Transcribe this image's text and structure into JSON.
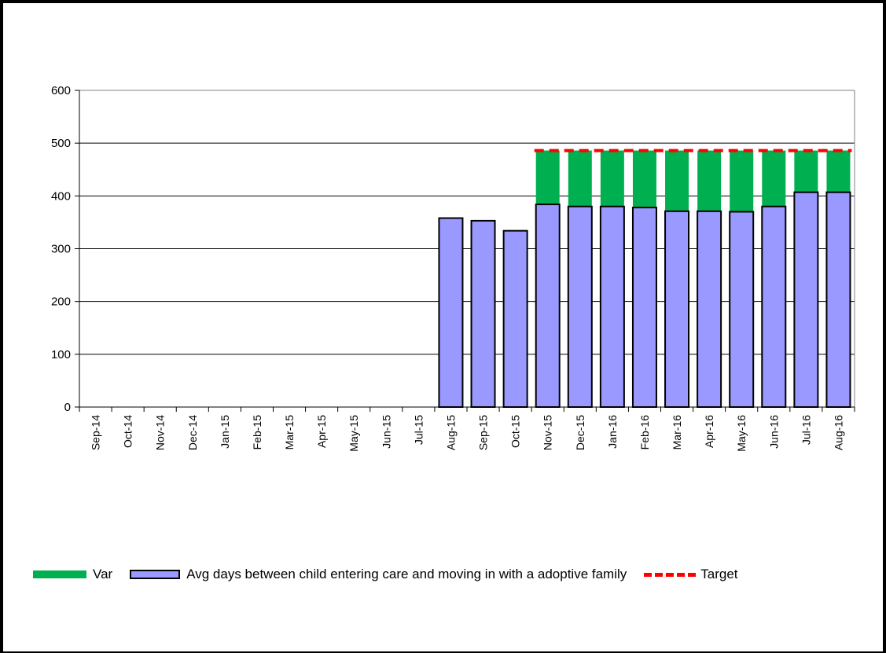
{
  "chart_data": {
    "type": "bar",
    "categories": [
      "Sep-14",
      "Oct-14",
      "Nov-14",
      "Dec-14",
      "Jan-15",
      "Feb-15",
      "Mar-15",
      "Apr-15",
      "May-15",
      "Jun-15",
      "Jul-15",
      "Aug-15",
      "Sep-15",
      "Oct-15",
      "Nov-15",
      "Dec-15",
      "Jan-16",
      "Feb-16",
      "Mar-16",
      "Apr-16",
      "May-16",
      "Jun-16",
      "Jul-16",
      "Aug-16"
    ],
    "series": [
      {
        "name": "Avg days between child entering care and moving in with a adoptive family",
        "kind": "bar",
        "values": [
          null,
          null,
          null,
          null,
          null,
          null,
          null,
          null,
          null,
          null,
          null,
          358,
          353,
          334,
          384,
          380,
          380,
          378,
          371,
          371,
          370,
          380,
          407,
          407
        ]
      },
      {
        "name": "Var",
        "kind": "stacked-bar",
        "values": [
          null,
          null,
          null,
          null,
          null,
          null,
          null,
          null,
          null,
          null,
          null,
          null,
          null,
          null,
          102,
          106,
          106,
          108,
          115,
          115,
          116,
          106,
          79,
          79
        ]
      },
      {
        "name": "Target",
        "kind": "line",
        "values": [
          null,
          null,
          null,
          null,
          null,
          null,
          null,
          null,
          null,
          null,
          null,
          null,
          null,
          null,
          486,
          486,
          486,
          486,
          486,
          486,
          486,
          486,
          486,
          486
        ]
      }
    ],
    "yticks": [
      "0",
      "100",
      "200",
      "300",
      "400",
      "500",
      "600"
    ],
    "ylim": [
      0,
      600
    ],
    "grid": true,
    "legend_position": "bottom",
    "colors": {
      "avg": "#9999ff",
      "var": "#00b050",
      "target": "#ff0000",
      "gridline": "#000000",
      "plot_border": "#808080"
    }
  },
  "legend": {
    "var_label": "Var",
    "avg_label": "Avg days between child entering care and moving in with a adoptive family",
    "target_label": "Target"
  }
}
